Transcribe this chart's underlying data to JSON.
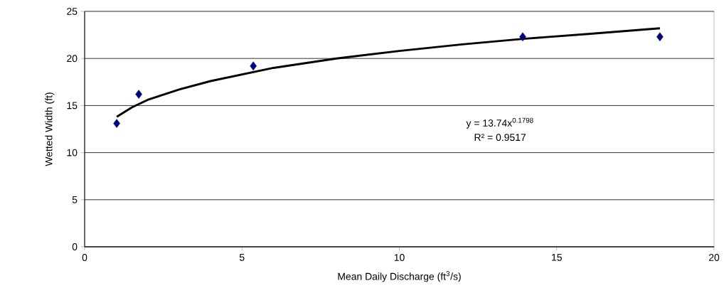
{
  "chart_data": {
    "type": "scatter",
    "xlabel": "Mean Daily Discharge (ft$^{3}$/s)",
    "ylabel": "Wetted Width (ft)",
    "xlim": [
      0,
      20
    ],
    "ylim": [
      0,
      25
    ],
    "xticks": [
      0,
      5,
      10,
      15,
      20
    ],
    "yticks": [
      0,
      5,
      10,
      15,
      20,
      25
    ],
    "grid": "y",
    "marker": "diamond",
    "series": [
      {
        "color": "#000080",
        "x": [
          1.02,
          1.72,
          5.36,
          13.92,
          18.28
        ],
        "values": [
          13.1,
          16.2,
          19.2,
          22.3,
          22.3
        ]
      },
      {
        "type": "line",
        "color": "#000000",
        "marker": "none",
        "x": [
          1.02,
          1.5,
          2,
          3,
          4,
          6,
          8,
          10,
          12,
          14,
          16,
          18.28
        ],
        "values": [
          13.8,
          14.8,
          15.6,
          16.7,
          17.6,
          19.0,
          20.0,
          20.8,
          21.5,
          22.1,
          22.6,
          23.2
        ]
      }
    ],
    "annotations": [
      "y = 13.74x$^{0.1798}$",
      "R² = 0.9517"
    ]
  }
}
